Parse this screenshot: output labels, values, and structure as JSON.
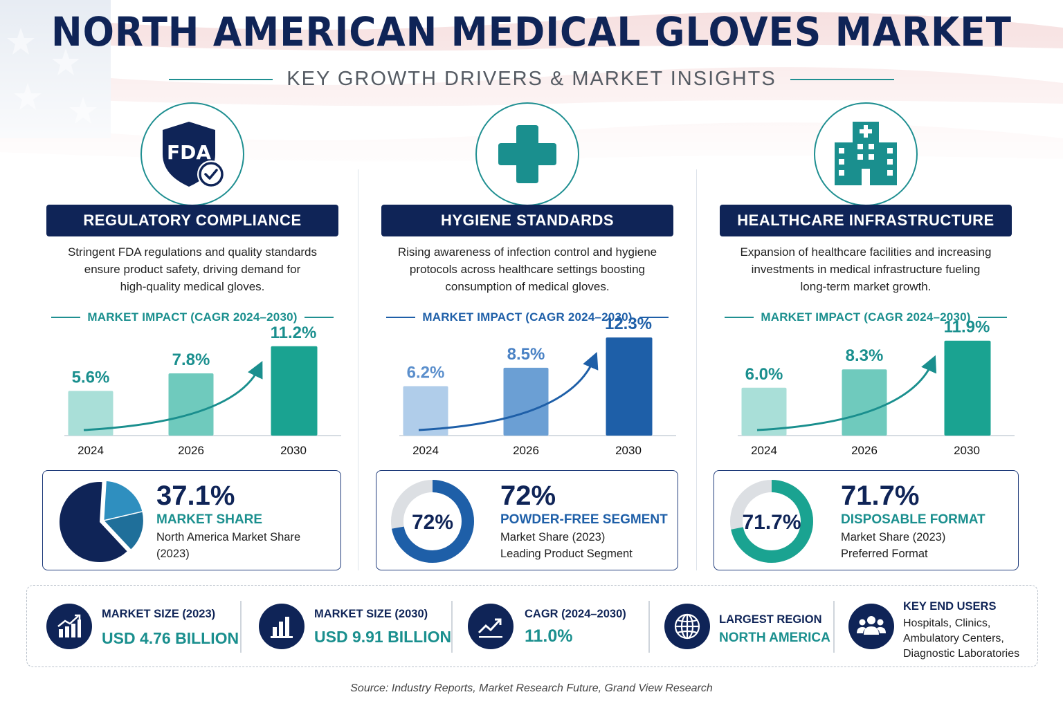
{
  "title": "NORTH AMERICAN MEDICAL GLOVES MARKET",
  "subtitle": "KEY GROWTH DRIVERS & MARKET INSIGHTS",
  "colors": {
    "navy": "#0f2457",
    "teal": "#1a8f8e",
    "blue": "#1e5fa8"
  },
  "columns": [
    {
      "icon": "fda-shield-check-icon",
      "icon_text": "FDA",
      "heading": "REGULATORY COMPLIANCE",
      "description_lines": [
        "Stringent FDA regulations and quality standards",
        "ensure product safety, driving demand for",
        "high-quality medical gloves."
      ],
      "impact_label": "MARKET IMPACT (CAGR 2024–2030)",
      "accent": "#1a8f8e",
      "bar_colors": [
        "#a9dfd8",
        "#6fcabd",
        "#1aa391"
      ],
      "stat_big": "37.1%",
      "stat_label": "MARKET SHARE",
      "stat_sub1": "North America Market Share",
      "stat_sub2": "(2023)",
      "stat_fraction": 0.371
    },
    {
      "icon": "medical-cross-icon",
      "heading": "HYGIENE STANDARDS",
      "description_lines": [
        "Rising awareness of infection control and hygiene",
        "protocols across healthcare settings boosting",
        "consumption of medical gloves."
      ],
      "impact_label": "MARKET IMPACT (CAGR 2024–2030)",
      "accent": "#1e5fa8",
      "bar_colors": [
        "#b0cdea",
        "#6b9fd4",
        "#1e5fa8"
      ],
      "stat_big": "72%",
      "stat_donut": "72%",
      "stat_label": "POWDER-FREE SEGMENT",
      "stat_sub1": "Market Share (2023)",
      "stat_sub2": "Leading Product Segment",
      "stat_fraction": 0.72
    },
    {
      "icon": "hospital-building-icon",
      "heading": "HEALTHCARE INFRASTRUCTURE",
      "description_lines": [
        "Expansion of healthcare facilities and increasing",
        "investments in medical infrastructure fueling",
        "long-term market growth."
      ],
      "impact_label": "MARKET IMPACT (CAGR 2024–2030)",
      "accent": "#1a8f8e",
      "bar_colors": [
        "#a9dfd8",
        "#6fcabd",
        "#1aa391"
      ],
      "stat_big": "71.7%",
      "stat_donut": "71.7%",
      "stat_label": "DISPOSABLE FORMAT",
      "stat_sub1": "Market Share (2023)",
      "stat_sub2": "Preferred Format",
      "stat_fraction": 0.717
    }
  ],
  "chart_data": [
    {
      "type": "bar",
      "categories": [
        "2024",
        "2026",
        "2030"
      ],
      "values": [
        5.6,
        7.8,
        11.2
      ],
      "labels": [
        "5.6%",
        "7.8%",
        "11.2%"
      ],
      "title": "MARKET IMPACT (CAGR 2024–2030)",
      "ylim": [
        0,
        13
      ]
    },
    {
      "type": "bar",
      "categories": [
        "2024",
        "2026",
        "2030"
      ],
      "values": [
        6.2,
        8.5,
        12.3
      ],
      "labels": [
        "6.2%",
        "8.5%",
        "12.3%"
      ],
      "title": "MARKET IMPACT (CAGR 2024–2030)",
      "ylim": [
        0,
        13
      ]
    },
    {
      "type": "bar",
      "categories": [
        "2024",
        "2026",
        "2030"
      ],
      "values": [
        6.0,
        8.3,
        11.9
      ],
      "labels": [
        "6.0%",
        "8.3%",
        "11.9%"
      ],
      "title": "MARKET IMPACT (CAGR 2024–2030)",
      "ylim": [
        0,
        13
      ]
    }
  ],
  "kpis": [
    {
      "icon": "growth-chart-icon",
      "label": "MARKET SIZE (2023)",
      "value": "USD 4.76 BILLION"
    },
    {
      "icon": "bar-chart-icon",
      "label": "MARKET SIZE (2030)",
      "value": "USD 9.91 BILLION"
    },
    {
      "icon": "trend-up-icon",
      "label": "CAGR (2024–2030)",
      "value": "11.0%"
    },
    {
      "icon": "globe-icon",
      "label": "LARGEST REGION",
      "value": "NORTH AMERICA"
    },
    {
      "icon": "users-icon",
      "label": "KEY END USERS",
      "lines": [
        "Hospitals, Clinics,",
        "Ambulatory Centers,",
        "Diagnostic Laboratories"
      ]
    }
  ],
  "source": "Source: Industry Reports, Market Research Future, Grand View Research"
}
